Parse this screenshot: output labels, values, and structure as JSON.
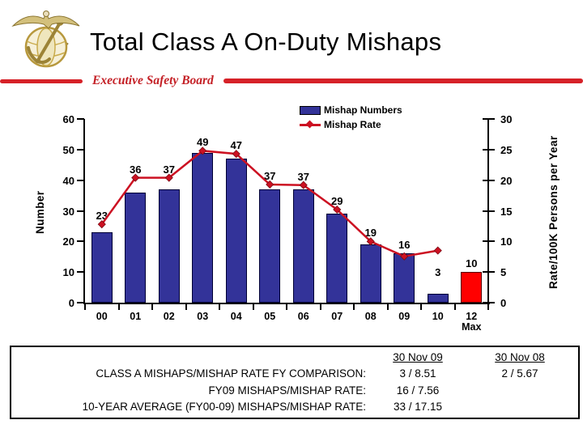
{
  "header": {
    "title": "Total Class A On-Duty Mishaps",
    "subtitle": "Executive Safety Board",
    "logo_icon": "usmc-eagle-globe-anchor-emblem"
  },
  "colors": {
    "bar_blue": "#333399",
    "bar_blue_border": "#000033",
    "bar_red": "#FF0000",
    "bar_red_border": "#550000",
    "line_red": "#CC1122",
    "divider_red": "#D62128",
    "text": "#000000",
    "background": "#FFFFFF"
  },
  "chart_data": {
    "type": "bar",
    "subtype": "bar-line-combo",
    "categories": [
      "00",
      "01",
      "02",
      "03",
      "04",
      "05",
      "06",
      "07",
      "08",
      "09",
      "10",
      "12\nMax"
    ],
    "series": [
      {
        "name": "Mishap Numbers",
        "type": "bar",
        "axis": "left",
        "values": [
          23,
          36,
          37,
          49,
          47,
          37,
          37,
          29,
          19,
          16,
          3,
          10
        ],
        "labels": [
          "23",
          "36",
          "37",
          "49",
          "47",
          "37",
          "37",
          "29",
          "19",
          "16",
          "3",
          "10"
        ]
      },
      {
        "name": "Mishap Rate",
        "type": "line",
        "axis": "right",
        "values": [
          12.8,
          20.4,
          20.4,
          24.8,
          24.3,
          19.3,
          19.2,
          15.2,
          10.0,
          7.56,
          8.51,
          null
        ]
      }
    ],
    "left_axis": {
      "label": "Number",
      "min": 0,
      "max": 60,
      "step": 10
    },
    "right_axis": {
      "label": "Rate/100K Persons per Year",
      "min": 0,
      "max": 30,
      "step": 5
    },
    "legend_position": "top-center",
    "grid": false,
    "highlight_last_bar_red": true
  },
  "footer_table": {
    "col_headers": [
      "30 Nov 09",
      "30 Nov 08"
    ],
    "rows": [
      {
        "label": "CLASS A MISHAPS/MISHAP RATE FY COMPARISON:",
        "col1": "3 / 8.51",
        "col2": "2 / 5.67"
      },
      {
        "label": "FY09 MISHAPS/MISHAP RATE:",
        "col1": "16 / 7.56",
        "col2": ""
      },
      {
        "label": "10-YEAR AVERAGE (FY00-09) MISHAPS/MISHAP RATE:",
        "col1": "33 / 17.15",
        "col2": ""
      }
    ]
  }
}
